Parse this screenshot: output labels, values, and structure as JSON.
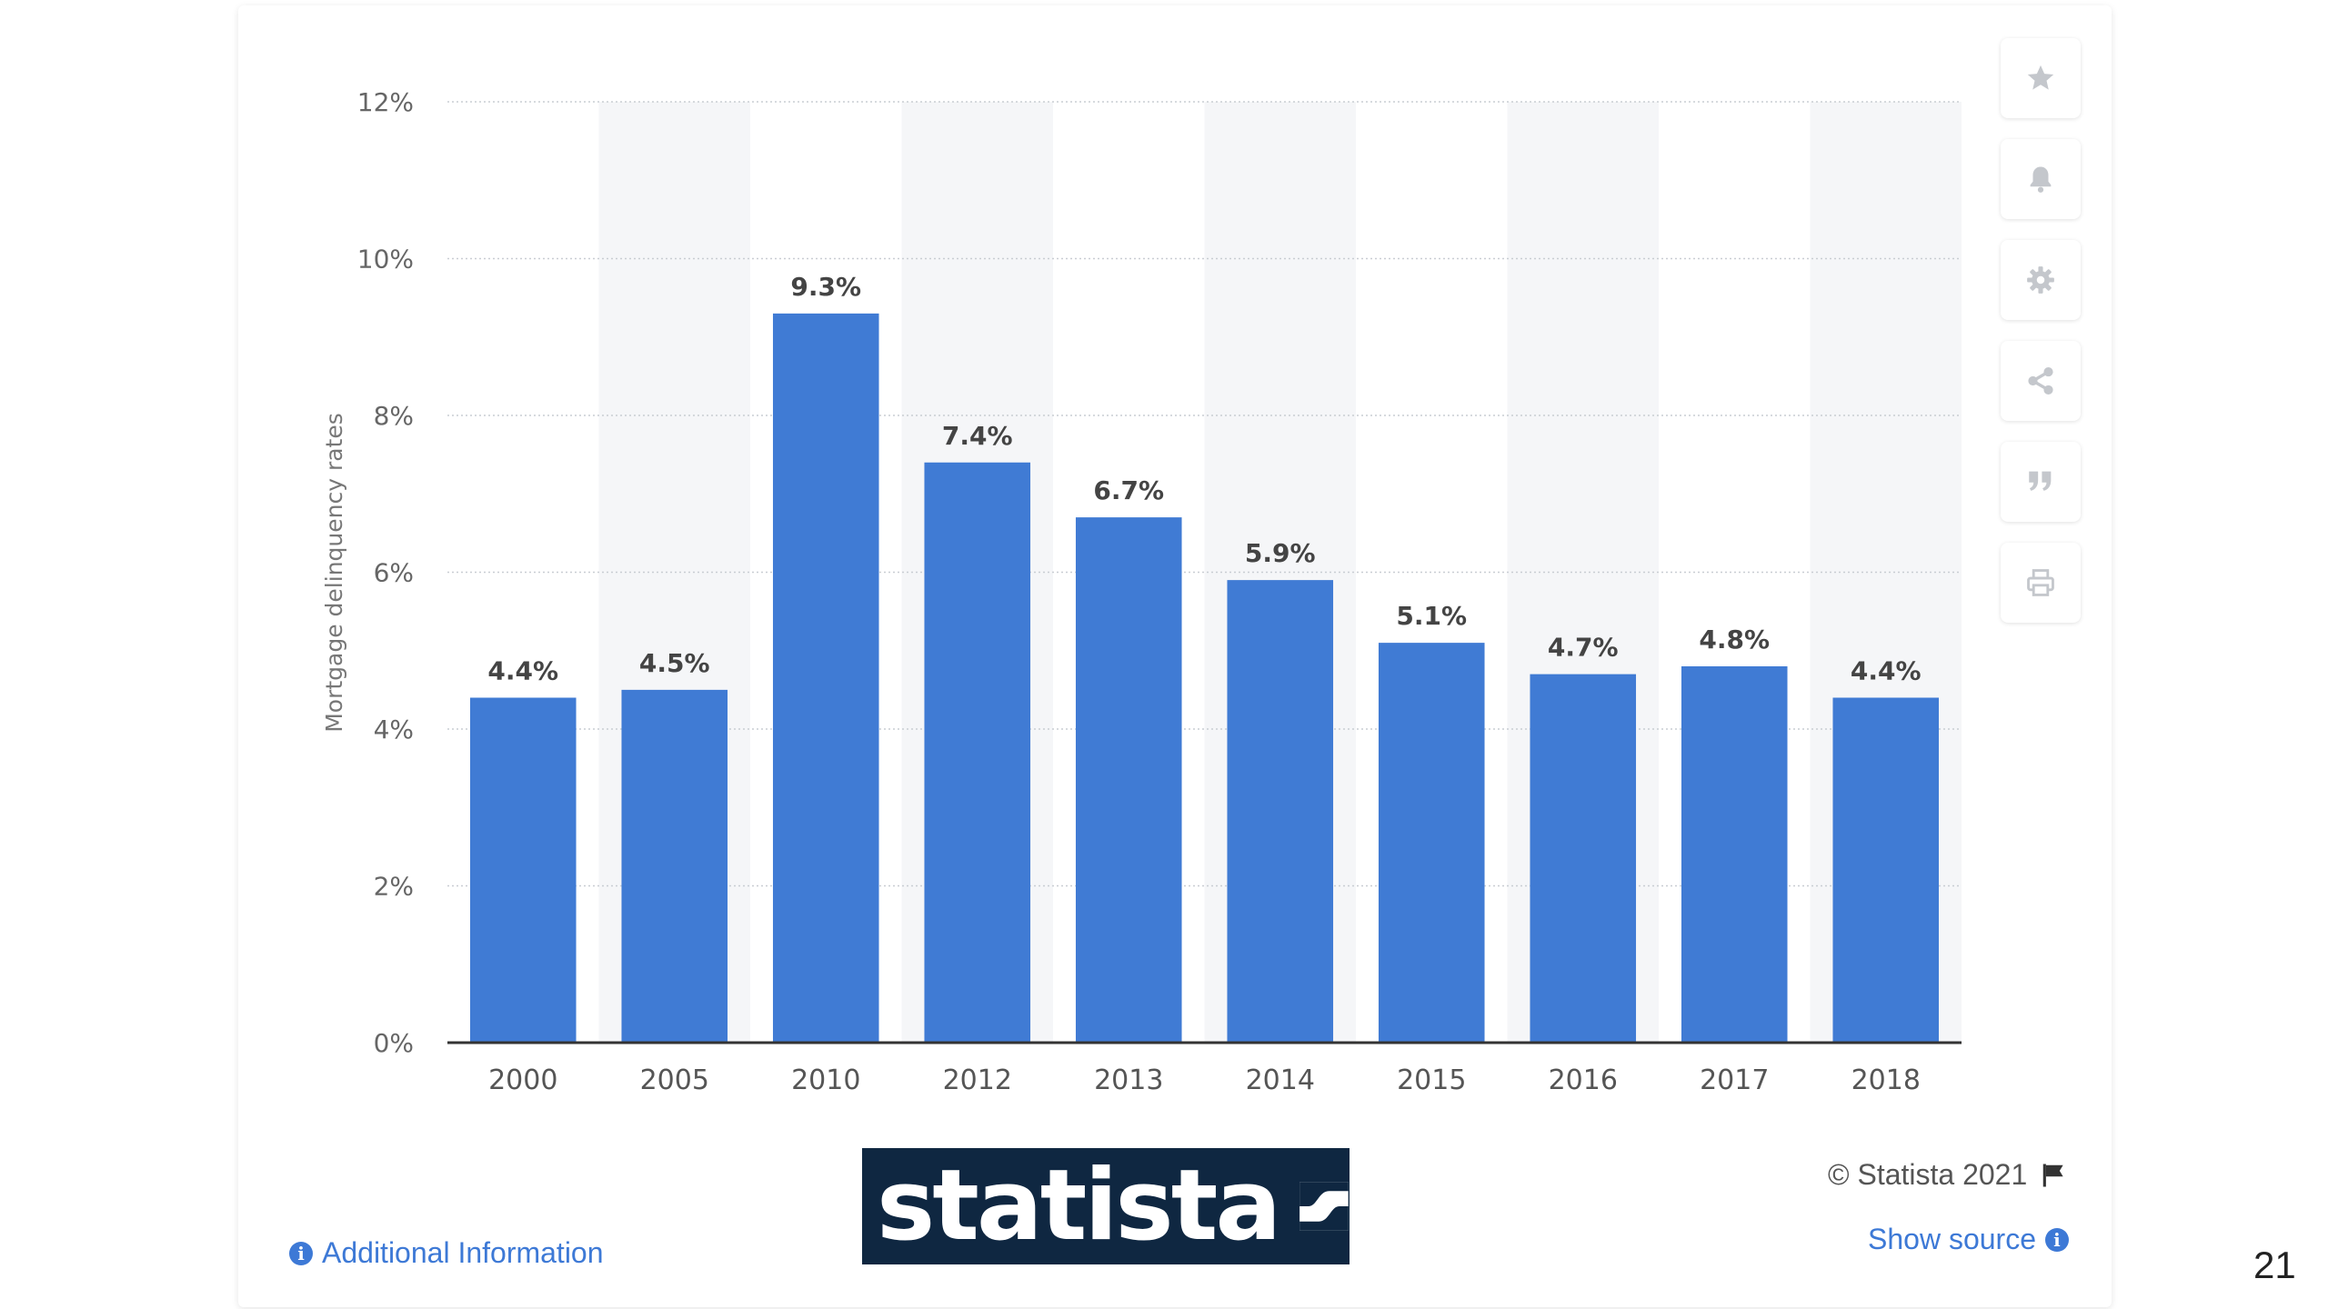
{
  "chart_data": {
    "type": "bar",
    "categories": [
      "2000",
      "2005",
      "2010",
      "2012",
      "2013",
      "2014",
      "2015",
      "2016",
      "2017",
      "2018"
    ],
    "values": [
      4.4,
      4.5,
      9.3,
      7.4,
      6.7,
      5.9,
      5.1,
      4.7,
      4.8,
      4.4
    ],
    "value_labels": [
      "4.4%",
      "4.5%",
      "9.3%",
      "7.4%",
      "6.7%",
      "5.9%",
      "5.1%",
      "4.7%",
      "4.8%",
      "4.4%"
    ],
    "ylabel": "Mortgage delinquency rates",
    "xlabel": "",
    "ylim": [
      0,
      12
    ],
    "yticks": [
      0,
      2,
      4,
      6,
      8,
      10,
      12
    ],
    "ytick_labels": [
      "0%",
      "2%",
      "4%",
      "6%",
      "8%",
      "10%",
      "12%"
    ],
    "grid": true,
    "bar_color": "#407bd4",
    "alt_column_color": "#f5f6f8"
  },
  "footer": {
    "additional_info": "Additional Information",
    "copyright": "© Statista 2021",
    "show_source": "Show source",
    "logo_text": "statista"
  },
  "sidebar_icons": [
    "star-icon",
    "bell-icon",
    "gear-icon",
    "share-icon",
    "quote-icon",
    "print-icon"
  ],
  "page_number": "21"
}
